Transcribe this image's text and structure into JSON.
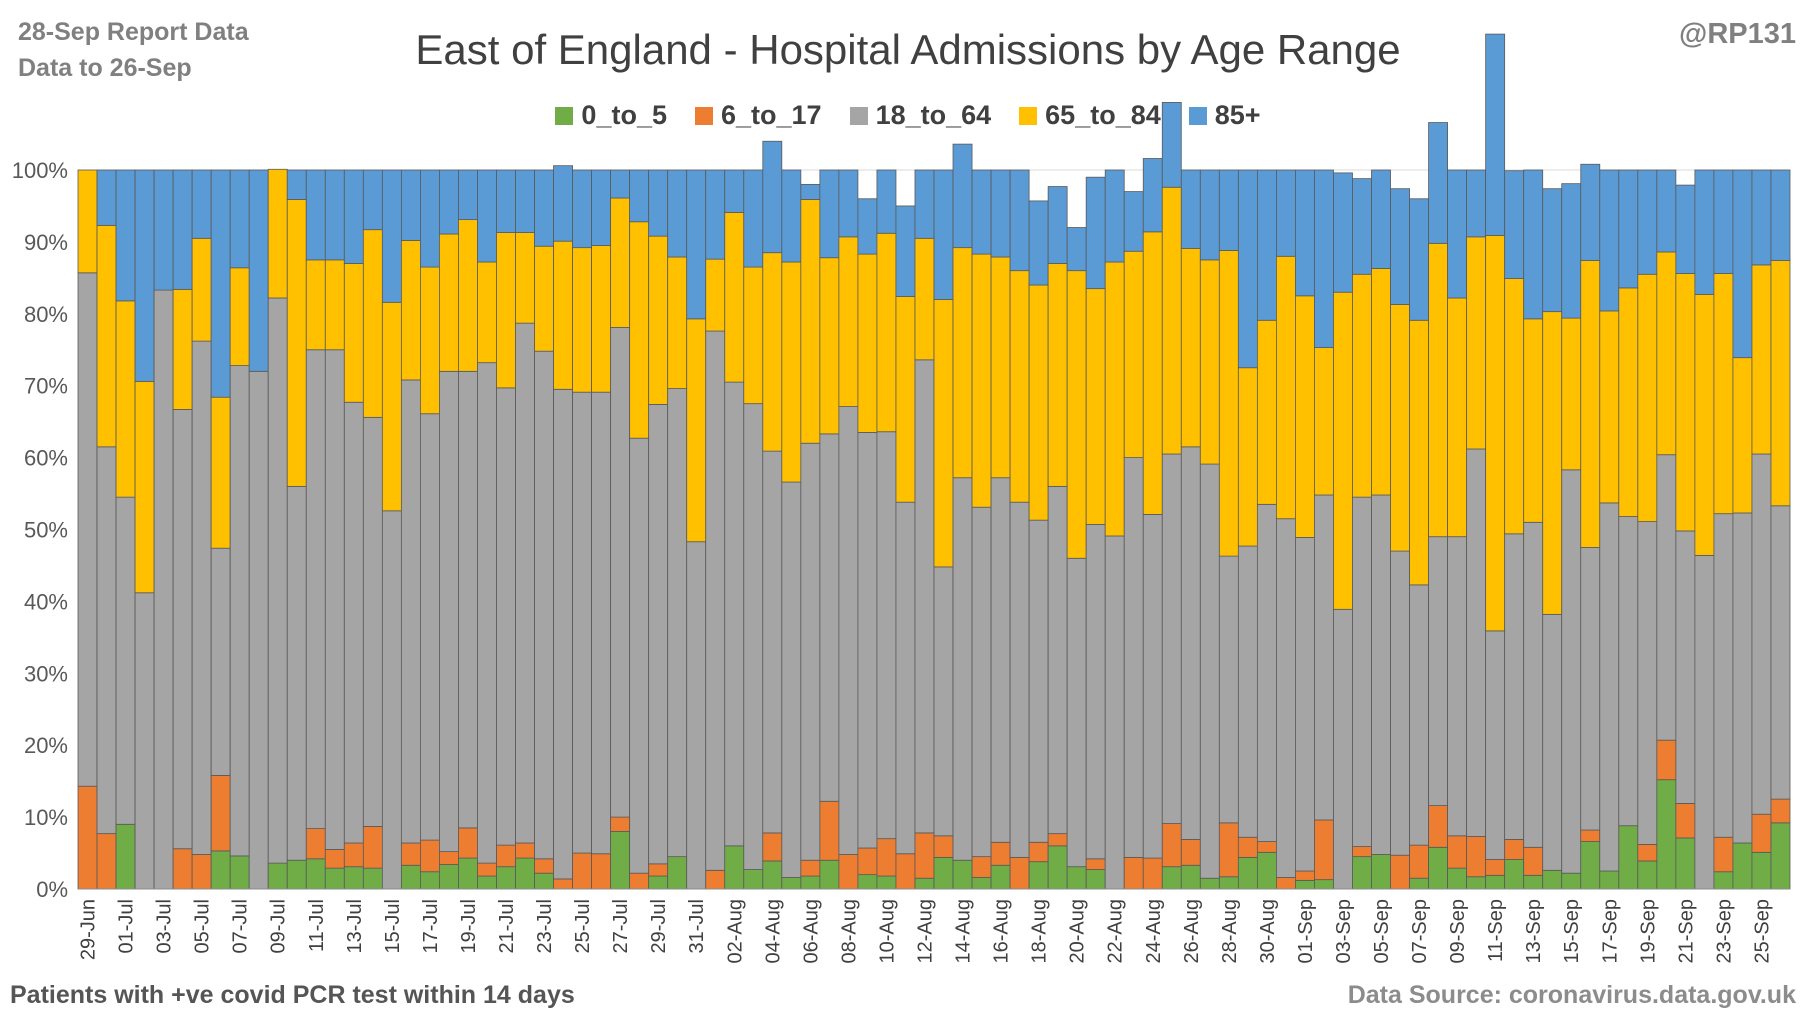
{
  "header": {
    "report_line1": "28-Sep Report Data",
    "report_line2": "Data to 26-Sep",
    "handle": "@RP131"
  },
  "footer": {
    "left": "Patients with  +ve covid PCR test within 14 days",
    "right": "Data Source: coronavirus.data.gov.uk"
  },
  "chart_data": {
    "type": "bar",
    "stacked": true,
    "normalized": true,
    "title": "East of England - Hospital Admissions by Age Range",
    "ylim": [
      0,
      100
    ],
    "yticks": [
      "0%",
      "10%",
      "20%",
      "30%",
      "40%",
      "50%",
      "60%",
      "70%",
      "80%",
      "90%",
      "100%"
    ],
    "grid": true,
    "legend_position": "top",
    "categories": [
      "29-Jun",
      "30-Jun",
      "01-Jul",
      "02-Jul",
      "03-Jul",
      "04-Jul",
      "05-Jul",
      "06-Jul",
      "07-Jul",
      "08-Jul",
      "09-Jul",
      "10-Jul",
      "11-Jul",
      "12-Jul",
      "13-Jul",
      "14-Jul",
      "15-Jul",
      "16-Jul",
      "17-Jul",
      "18-Jul",
      "19-Jul",
      "20-Jul",
      "21-Jul",
      "22-Jul",
      "23-Jul",
      "24-Jul",
      "25-Jul",
      "26-Jul",
      "27-Jul",
      "28-Jul",
      "29-Jul",
      "30-Jul",
      "31-Jul",
      "01-Aug",
      "02-Aug",
      "03-Aug",
      "04-Aug",
      "05-Aug",
      "06-Aug",
      "07-Aug",
      "08-Aug",
      "09-Aug",
      "10-Aug",
      "11-Aug",
      "12-Aug",
      "13-Aug",
      "14-Aug",
      "15-Aug",
      "16-Aug",
      "17-Aug",
      "18-Aug",
      "19-Aug",
      "20-Aug",
      "21-Aug",
      "22-Aug",
      "23-Aug",
      "24-Aug",
      "25-Aug",
      "26-Aug",
      "27-Aug",
      "28-Aug",
      "29-Aug",
      "30-Aug",
      "31-Aug",
      "01-Sep",
      "02-Sep",
      "03-Sep",
      "04-Sep",
      "05-Sep",
      "06-Sep",
      "07-Sep",
      "08-Sep",
      "09-Sep",
      "10-Sep",
      "11-Sep",
      "12-Sep",
      "13-Sep",
      "14-Sep",
      "15-Sep",
      "16-Sep",
      "17-Sep",
      "18-Sep",
      "19-Sep",
      "20-Sep",
      "21-Sep",
      "22-Sep",
      "23-Sep",
      "24-Sep",
      "25-Sep",
      "26-Sep"
    ],
    "x_tick_labels": [
      "29-Jun",
      "01-Jul",
      "03-Jul",
      "05-Jul",
      "07-Jul",
      "09-Jul",
      "11-Jul",
      "13-Jul",
      "15-Jul",
      "17-Jul",
      "19-Jul",
      "21-Jul",
      "23-Jul",
      "25-Jul",
      "27-Jul",
      "29-Jul",
      "31-Jul",
      "02-Aug",
      "04-Aug",
      "06-Aug",
      "08-Aug",
      "10-Aug",
      "12-Aug",
      "14-Aug",
      "16-Aug",
      "18-Aug",
      "20-Aug",
      "22-Aug",
      "24-Aug",
      "26-Aug",
      "28-Aug",
      "30-Aug",
      "01-Sep",
      "03-Sep",
      "05-Sep",
      "07-Sep",
      "09-Sep",
      "11-Sep",
      "13-Sep",
      "15-Sep",
      "17-Sep",
      "19-Sep",
      "21-Sep",
      "23-Sep",
      "25-Sep"
    ],
    "series": [
      {
        "name": "0_to_5",
        "color": "#70ad47",
        "values": [
          0.0,
          0.0,
          9.0,
          0.0,
          0.0,
          0.0,
          0.0,
          5.3,
          4.6,
          0.0,
          3.6,
          4.0,
          4.2,
          2.9,
          3.1,
          2.9,
          0.0,
          3.3,
          2.4,
          3.4,
          4.3,
          1.8,
          3.1,
          4.3,
          2.2,
          0.0,
          0.0,
          0.0,
          8.0,
          0.0,
          1.8,
          4.5,
          0.0,
          0.0,
          6.0,
          2.7,
          3.9,
          1.6,
          1.8,
          4.0,
          0.0,
          2.0,
          1.8,
          0.0,
          1.5,
          4.4,
          4.0,
          1.6,
          3.3,
          0.0,
          3.8,
          6.0,
          3.1,
          2.7,
          0.0,
          0.0,
          0.0,
          3.1,
          3.3,
          1.5,
          1.7,
          4.4,
          5.1,
          0.0,
          1.2,
          1.3,
          0.0,
          4.5,
          4.8,
          0.0,
          1.5,
          5.8,
          2.9,
          1.7,
          1.9,
          4.1,
          1.9,
          2.6,
          2.2,
          6.6,
          2.5,
          8.8,
          3.9,
          15.2,
          7.1,
          0.0,
          2.4,
          6.4,
          5.1,
          9.2
        ]
      },
      {
        "name": "6_to_17",
        "color": "#ed7d31",
        "values": [
          14.3,
          7.7,
          0.0,
          0.0,
          0.0,
          5.6,
          4.8,
          10.5,
          0.0,
          0.0,
          0.0,
          0.0,
          4.2,
          2.6,
          3.3,
          5.8,
          0.0,
          3.1,
          4.4,
          1.8,
          4.2,
          1.8,
          3.0,
          2.1,
          2.0,
          1.4,
          5.0,
          4.9,
          2.0,
          2.2,
          1.7,
          0.0,
          0.0,
          2.6,
          0.0,
          0.0,
          3.9,
          0.0,
          2.2,
          8.2,
          4.8,
          3.7,
          5.2,
          4.9,
          6.3,
          3.0,
          0.0,
          2.9,
          3.2,
          4.4,
          2.7,
          1.7,
          0.0,
          1.5,
          0.0,
          4.4,
          4.3,
          6.0,
          3.6,
          0.0,
          7.5,
          2.8,
          1.5,
          1.6,
          1.3,
          8.3,
          0.0,
          1.4,
          0.0,
          4.7,
          4.6,
          5.8,
          4.5,
          5.6,
          2.2,
          2.8,
          3.9,
          0.0,
          0.0,
          1.6,
          0.0,
          0.0,
          2.3,
          5.5,
          4.8,
          0.0,
          4.8,
          0.0,
          5.3,
          3.3
        ]
      },
      {
        "name": "18_to_64",
        "color": "#a5a5a5",
        "values": [
          71.4,
          53.8,
          45.5,
          41.2,
          83.3,
          61.1,
          71.4,
          31.6,
          68.2,
          72.0,
          78.6,
          52.0,
          66.6,
          69.5,
          61.3,
          56.9,
          52.6,
          64.4,
          59.3,
          66.8,
          63.5,
          69.6,
          63.6,
          72.3,
          70.6,
          68.1,
          64.1,
          64.2,
          68.1,
          60.5,
          63.9,
          65.1,
          48.3,
          75.0,
          64.5,
          64.8,
          53.1,
          55.0,
          58.0,
          51.1,
          62.3,
          57.8,
          56.6,
          48.9,
          65.8,
          37.4,
          53.2,
          48.6,
          50.7,
          49.4,
          44.8,
          48.3,
          42.9,
          46.5,
          49.1,
          55.6,
          47.8,
          51.4,
          54.6,
          57.6,
          37.1,
          40.5,
          46.9,
          49.9,
          46.4,
          45.2,
          38.9,
          48.6,
          50.0,
          42.3,
          36.2,
          37.4,
          41.6,
          53.9,
          31.8,
          42.5,
          45.2,
          35.6,
          56.1,
          39.3,
          51.2,
          43.0,
          44.9,
          39.7,
          37.9,
          46.4,
          45.0,
          45.9,
          50.1,
          40.8
        ]
      },
      {
        "name": "65_to_84",
        "color": "#ffc000",
        "values": [
          14.3,
          30.8,
          27.3,
          29.4,
          0.0,
          16.7,
          14.3,
          21.0,
          13.6,
          0.0,
          17.9,
          39.9,
          12.5,
          12.5,
          19.3,
          26.1,
          29.0,
          19.4,
          20.4,
          19.1,
          21.1,
          14.0,
          21.6,
          12.6,
          14.6,
          20.6,
          20.1,
          20.4,
          18.0,
          30.1,
          23.4,
          18.3,
          31.0,
          10.0,
          23.6,
          19.0,
          27.6,
          30.6,
          33.9,
          24.5,
          23.6,
          24.8,
          27.6,
          28.6,
          16.9,
          37.2,
          32.0,
          35.2,
          30.7,
          32.2,
          32.7,
          31.0,
          40.0,
          32.8,
          38.1,
          28.7,
          39.3,
          37.1,
          27.6,
          28.4,
          42.5,
          24.8,
          25.6,
          36.5,
          33.6,
          20.5,
          44.1,
          31.0,
          31.5,
          34.3,
          36.8,
          40.8,
          33.2,
          29.5,
          55.0,
          35.5,
          28.3,
          42.1,
          21.1,
          39.9,
          26.7,
          31.8,
          34.4,
          28.2,
          35.8,
          36.3,
          33.4,
          21.6,
          26.3,
          34.1
        ]
      },
      {
        "name": "85+",
        "color": "#5b9bd5",
        "values": [
          0.0,
          7.7,
          18.2,
          29.4,
          16.7,
          16.6,
          9.5,
          31.6,
          13.6,
          28.0,
          0.0,
          4.1,
          12.5,
          12.5,
          13.0,
          8.3,
          18.4,
          9.8,
          13.5,
          8.9,
          6.9,
          12.8,
          8.7,
          8.7,
          10.6,
          10.5,
          10.8,
          10.5,
          3.9,
          7.2,
          9.2,
          12.1,
          20.7,
          12.4,
          5.9,
          13.5,
          15.5,
          12.8,
          2.1,
          12.2,
          9.3,
          7.7,
          8.8,
          12.6,
          9.5,
          18.0,
          14.4,
          11.7,
          12.1,
          14.0,
          11.7,
          10.7,
          6.0,
          15.5,
          12.8,
          8.3,
          10.2,
          11.8,
          10.9,
          12.5,
          11.2,
          27.5,
          20.9,
          12.0,
          17.5,
          24.7,
          16.6,
          13.3,
          13.7,
          16.1,
          16.9,
          16.8,
          17.8,
          9.3,
          28.0,
          15.0,
          20.7,
          17.1,
          18.7,
          13.4,
          19.6,
          16.4,
          14.5,
          11.4,
          12.3,
          17.3,
          14.4,
          26.1,
          13.2,
          12.6
        ]
      }
    ]
  }
}
